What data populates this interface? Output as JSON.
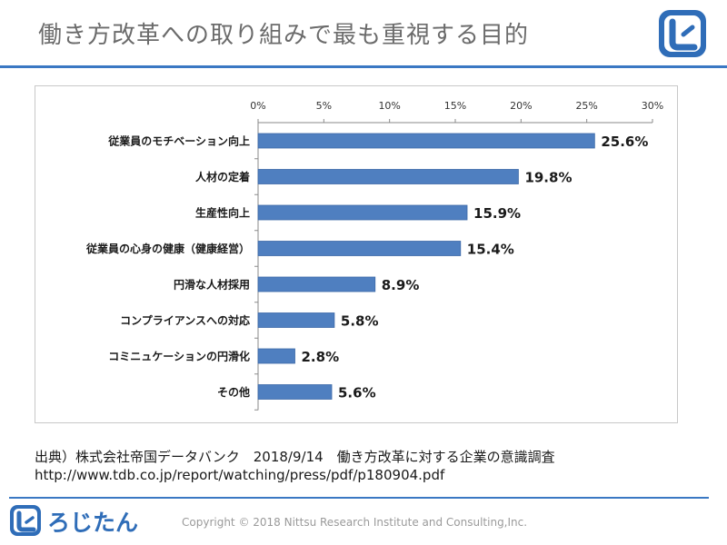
{
  "header": {
    "title": "働き方改革への取り組みで最も重視する目的"
  },
  "brand": {
    "logo_text": "ろじたん",
    "logo_color": "#2f6db8"
  },
  "source": {
    "line1": "出典）株式会社帝国データバンク　2018/9/14　働き方改革に対する企業の意識調査",
    "line2": "http://www.tdb.co.jp/report/watching/press/pdf/p180904.pdf"
  },
  "footer": {
    "copyright": "Copyright © 2018 Nittsu Research Institute and Consulting,Inc."
  },
  "colors": {
    "bar": "#4f7fc0",
    "accent": "#3a78c3"
  },
  "chart_data": {
    "type": "bar",
    "orientation": "horizontal",
    "categories": [
      "従業員のモチベーション向上",
      "人材の定着",
      "生産性向上",
      "従業員の心身の健康（健康経営）",
      "円滑な人材採用",
      "コンプライアンスへの対応",
      "コミニュケーションの円滑化",
      "その他"
    ],
    "values": [
      25.6,
      19.8,
      15.9,
      15.4,
      8.9,
      5.8,
      2.8,
      5.6
    ],
    "value_labels": [
      "25.6%",
      "19.8%",
      "15.9%",
      "15.4%",
      "8.9%",
      "5.8%",
      "2.8%",
      "5.6%"
    ],
    "xlim": [
      0,
      30
    ],
    "ticks": [
      0,
      5,
      10,
      15,
      20,
      25,
      30
    ],
    "tick_labels": [
      "0%",
      "5%",
      "10%",
      "15%",
      "20%",
      "25%",
      "30%"
    ],
    "axis_position": "top",
    "grid": false,
    "legend": "none"
  }
}
